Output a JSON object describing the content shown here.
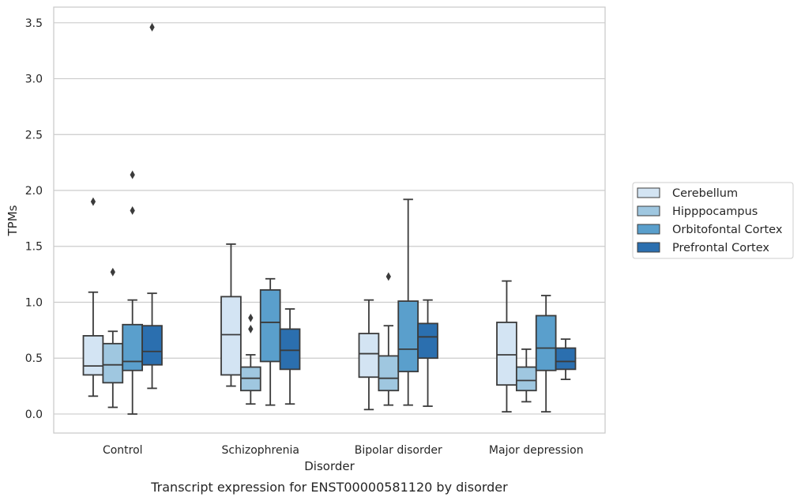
{
  "caption": "Transcript expression for ENST00000581120 by disorder",
  "chart_data": {
    "type": "box",
    "title": "",
    "xlabel": "Disorder",
    "ylabel": "TPMs",
    "ylim": [
      -0.17,
      3.64
    ],
    "yticks": [
      "0.0",
      "0.5",
      "1.0",
      "1.5",
      "2.0",
      "2.5",
      "3.0",
      "3.5"
    ],
    "grid": "y",
    "legend_position": "outside-right",
    "categories": [
      "Control",
      "Schizophrenia",
      "Bipolar disorder",
      "Major depression"
    ],
    "series": [
      {
        "name": "Cerebellum",
        "color": "#d3e4f3",
        "boxes": [
          {
            "whislo": 0.16,
            "q1": 0.35,
            "med": 0.43,
            "q3": 0.7,
            "whishi": 1.09,
            "fliers": [
              1.9
            ]
          },
          {
            "whislo": 0.25,
            "q1": 0.35,
            "med": 0.71,
            "q3": 1.05,
            "whishi": 1.52,
            "fliers": []
          },
          {
            "whislo": 0.04,
            "q1": 0.33,
            "med": 0.54,
            "q3": 0.72,
            "whishi": 1.02,
            "fliers": []
          },
          {
            "whislo": 0.02,
            "q1": 0.26,
            "med": 0.53,
            "q3": 0.82,
            "whishi": 1.19,
            "fliers": []
          }
        ]
      },
      {
        "name": "Hipppocampus",
        "color": "#9fc7e0",
        "boxes": [
          {
            "whislo": 0.06,
            "q1": 0.28,
            "med": 0.44,
            "q3": 0.63,
            "whishi": 0.74,
            "fliers": [
              1.27
            ]
          },
          {
            "whislo": 0.09,
            "q1": 0.21,
            "med": 0.32,
            "q3": 0.42,
            "whishi": 0.53,
            "fliers": [
              0.76,
              0.86
            ]
          },
          {
            "whislo": 0.08,
            "q1": 0.21,
            "med": 0.32,
            "q3": 0.52,
            "whishi": 0.79,
            "fliers": [
              1.23
            ]
          },
          {
            "whislo": 0.11,
            "q1": 0.21,
            "med": 0.3,
            "q3": 0.42,
            "whishi": 0.58,
            "fliers": []
          }
        ]
      },
      {
        "name": "Orbitofontal Cortex",
        "color": "#5a9fcc",
        "boxes": [
          {
            "whislo": 0.0,
            "q1": 0.39,
            "med": 0.47,
            "q3": 0.8,
            "whishi": 1.02,
            "fliers": [
              1.82,
              2.14
            ]
          },
          {
            "whislo": 0.08,
            "q1": 0.47,
            "med": 0.82,
            "q3": 1.11,
            "whishi": 1.21,
            "fliers": []
          },
          {
            "whislo": 0.08,
            "q1": 0.38,
            "med": 0.58,
            "q3": 1.01,
            "whishi": 1.92,
            "fliers": []
          },
          {
            "whislo": 0.02,
            "q1": 0.39,
            "med": 0.59,
            "q3": 0.88,
            "whishi": 1.06,
            "fliers": []
          }
        ]
      },
      {
        "name": "Prefrontal Cortex",
        "color": "#2b6faf",
        "boxes": [
          {
            "whislo": 0.23,
            "q1": 0.44,
            "med": 0.56,
            "q3": 0.79,
            "whishi": 1.08,
            "fliers": [
              3.46
            ]
          },
          {
            "whislo": 0.09,
            "q1": 0.4,
            "med": 0.57,
            "q3": 0.76,
            "whishi": 0.94,
            "fliers": []
          },
          {
            "whislo": 0.07,
            "q1": 0.5,
            "med": 0.69,
            "q3": 0.81,
            "whishi": 1.02,
            "fliers": []
          },
          {
            "whislo": 0.31,
            "q1": 0.4,
            "med": 0.47,
            "q3": 0.59,
            "whishi": 0.67,
            "fliers": []
          }
        ]
      }
    ]
  }
}
